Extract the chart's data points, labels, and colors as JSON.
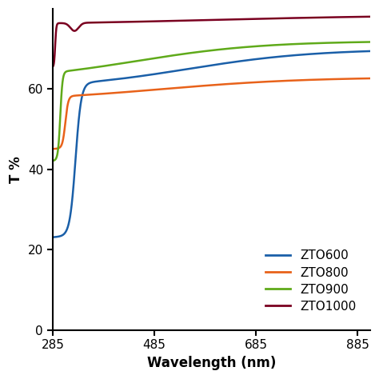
{
  "title": "",
  "xlabel": "Wavelength (nm)",
  "ylabel": "T %",
  "xlim": [
    285,
    910
  ],
  "ylim": [
    0,
    80
  ],
  "xticks": [
    285,
    485,
    685,
    885
  ],
  "yticks": [
    0,
    20,
    40,
    60
  ],
  "legend_labels": [
    "ZTO600",
    "ZTO800",
    "ZTO900",
    "ZTO1000"
  ],
  "colors": {
    "ZTO600": "#1a5fa8",
    "ZTO800": "#e8621a",
    "ZTO900": "#5faa1a",
    "ZTO1000": "#7a0020"
  },
  "background_color": "#ffffff",
  "line_width": 1.8
}
